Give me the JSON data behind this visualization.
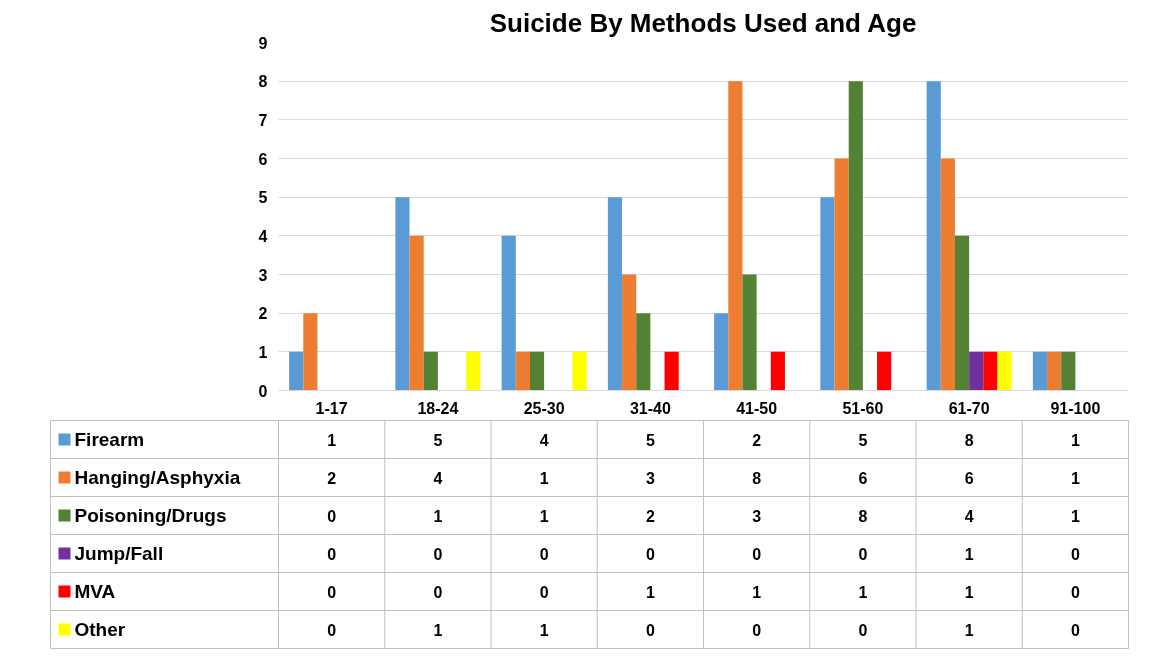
{
  "chart_data": {
    "type": "bar",
    "title": "Suicide By Methods Used and Age",
    "categories": [
      "1-17",
      "18-24",
      "25-30",
      "31-40",
      "41-50",
      "51-60",
      "61-70",
      "91-100"
    ],
    "series": [
      {
        "name": "Firearm",
        "color": "#5b9bd5",
        "values": [
          1,
          5,
          4,
          5,
          2,
          5,
          8,
          1
        ]
      },
      {
        "name": "Hanging/Asphyxia",
        "color": "#ed7d31",
        "values": [
          2,
          4,
          1,
          3,
          8,
          6,
          6,
          1
        ]
      },
      {
        "name": "Poisoning/Drugs",
        "color": "#548235",
        "values": [
          0,
          1,
          1,
          2,
          3,
          8,
          4,
          1
        ]
      },
      {
        "name": "Jump/Fall",
        "color": "#7030a0",
        "values": [
          0,
          0,
          0,
          0,
          0,
          0,
          1,
          0
        ]
      },
      {
        "name": "MVA",
        "color": "#ff0000",
        "values": [
          0,
          0,
          0,
          1,
          1,
          1,
          1,
          0
        ]
      },
      {
        "name": "Other",
        "color": "#ffff00",
        "values": [
          0,
          1,
          1,
          0,
          0,
          0,
          1,
          0
        ]
      }
    ],
    "ylim": [
      0,
      9
    ],
    "yticks": [
      0,
      1,
      2,
      3,
      4,
      5,
      6,
      7,
      8,
      9
    ],
    "grid": "y",
    "legend": "bottom",
    "data_labels": true
  }
}
